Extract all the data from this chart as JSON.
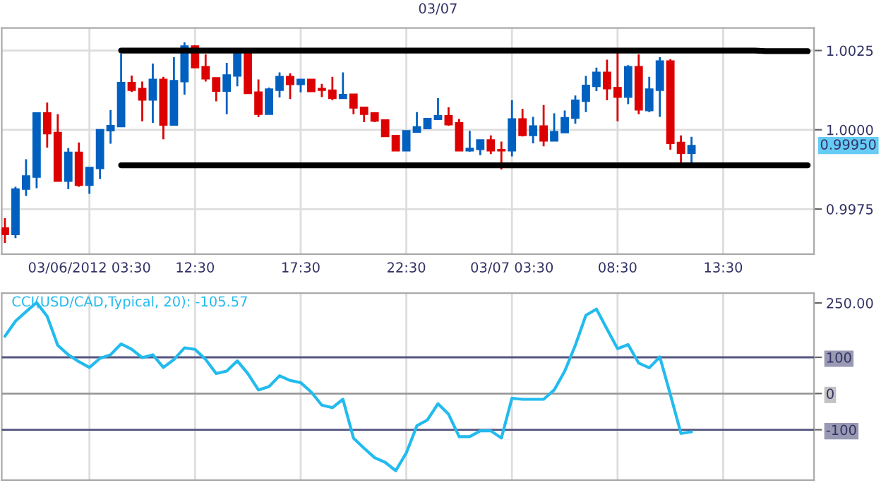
{
  "chart_data": [
    {
      "type": "candlestick",
      "categories": [
        null,
        null,
        null,
        null,
        null,
        null,
        null,
        null,
        "03/06/2012 03:30",
        null,
        null,
        null,
        null,
        null,
        null,
        null,
        null,
        null,
        "12:30",
        null,
        null,
        null,
        null,
        null,
        null,
        null,
        null,
        null,
        "17:30",
        null,
        null,
        null,
        null,
        null,
        null,
        null,
        null,
        null,
        "22:30",
        null,
        null,
        null,
        null,
        null,
        null,
        null,
        null,
        null,
        "03/07 03:30",
        null,
        null,
        null,
        null,
        null,
        null,
        null,
        null,
        null,
        "08:30",
        null,
        null,
        null,
        null,
        null,
        null,
        null,
        null,
        null,
        "13:30",
        null,
        null,
        null,
        null,
        null,
        null,
        null,
        null
      ],
      "ohlc": [
        [
          0.9969,
          0.99721,
          0.99643,
          0.9967
        ],
        [
          0.9967,
          0.9982,
          0.99658,
          0.99813
        ],
        [
          0.99813,
          0.99907,
          0.99791,
          0.99854
        ],
        [
          0.99851,
          1.00053,
          0.99816,
          1.00053
        ],
        [
          1.00053,
          1.00086,
          0.99944,
          0.99988
        ],
        [
          0.99991,
          1.00049,
          0.99838,
          0.99838
        ],
        [
          0.99838,
          0.99942,
          0.99813,
          0.99929
        ],
        [
          0.99929,
          0.9996,
          0.9982,
          0.99825
        ],
        [
          0.99825,
          0.99881,
          0.99798,
          0.99881
        ],
        [
          0.99878,
          1.0,
          0.99845,
          1.0
        ],
        [
          0.99997,
          1.00062,
          0.99956,
          1.00013
        ],
        [
          1.0001,
          1.0024,
          1.0001,
          1.00149
        ],
        [
          1.00149,
          1.00171,
          1.00119,
          1.00125
        ],
        [
          1.0013,
          1.00152,
          1.00027,
          1.00094
        ],
        [
          1.00094,
          1.00209,
          1.00022,
          1.00159
        ],
        [
          1.00159,
          1.00167,
          0.9997,
          1.00015
        ],
        [
          1.00015,
          1.00229,
          1.00015,
          1.00155
        ],
        [
          1.00152,
          1.00276,
          1.00111,
          1.00264
        ],
        [
          1.00264,
          1.00267,
          1.00196,
          1.00196
        ],
        [
          1.00199,
          1.00238,
          1.00152,
          1.00161
        ],
        [
          1.00164,
          1.00164,
          1.0009,
          1.00122
        ],
        [
          1.00122,
          1.00211,
          1.00049,
          1.00173
        ],
        [
          1.0017,
          1.0024,
          1.00137,
          1.0024
        ],
        [
          1.0024,
          1.0024,
          1.00115,
          1.00115
        ],
        [
          1.00119,
          1.00159,
          1.0004,
          1.00049
        ],
        [
          1.00049,
          1.00133,
          1.00049,
          1.00128
        ],
        [
          1.00125,
          1.00181,
          1.00102,
          1.00168
        ],
        [
          1.00168,
          1.00178,
          1.00097,
          1.00143
        ],
        [
          1.00143,
          1.00159,
          1.00118,
          1.00159
        ],
        [
          1.00159,
          1.00159,
          1.00121,
          1.00121
        ],
        [
          1.0013,
          1.00145,
          1.00103,
          1.00125
        ],
        [
          1.00125,
          1.00167,
          1.00093,
          1.00099
        ],
        [
          1.00099,
          1.00181,
          1.00099,
          1.00111
        ],
        [
          1.00112,
          1.00112,
          1.00049,
          1.00069
        ],
        [
          1.00071,
          1.00071,
          1.00024,
          1.00049
        ],
        [
          1.00053,
          1.00053,
          1.00024,
          1.00028
        ],
        [
          1.00031,
          1.00031,
          0.99979,
          0.99979
        ],
        [
          0.99982,
          0.99982,
          0.99934,
          0.99934
        ],
        [
          0.99934,
          0.99997,
          0.99934,
          0.99997
        ],
        [
          0.99993,
          1.00056,
          0.99993,
          1.00009
        ],
        [
          1.00004,
          1.00035,
          1.00004,
          1.00035
        ],
        [
          1.00033,
          1.001,
          1.00033,
          1.00044
        ],
        [
          1.00044,
          1.00071,
          1.00013,
          1.00016
        ],
        [
          1.00022,
          1.00034,
          0.99934,
          0.99934
        ],
        [
          0.99934,
          0.99997,
          0.99931,
          0.99941
        ],
        [
          0.99938,
          0.99968,
          0.9992,
          0.99968
        ],
        [
          0.99968,
          0.99982,
          0.99923,
          0.99934
        ],
        [
          0.99937,
          0.99963,
          0.99875,
          0.99934
        ],
        [
          0.99934,
          1.00093,
          0.99916,
          1.00034
        ],
        [
          1.00034,
          1.00066,
          0.99979,
          0.99982
        ],
        [
          0.99982,
          1.00041,
          0.99957,
          1.00012
        ],
        [
          1.00012,
          1.00078,
          0.99948,
          0.99965
        ],
        [
          0.99965,
          1.00052,
          0.99965,
          0.99994
        ],
        [
          0.99991,
          1.00061,
          0.99991,
          1.00038
        ],
        [
          1.00037,
          1.00108,
          1.00019,
          1.00093
        ],
        [
          1.0009,
          1.0017,
          1.00056,
          1.0014
        ],
        [
          1.00137,
          1.00196,
          1.00122,
          1.00181
        ],
        [
          1.00181,
          1.00221,
          1.00093,
          1.0013
        ],
        [
          1.00133,
          1.00243,
          1.00027,
          1.00103
        ],
        [
          1.00103,
          1.00204,
          1.00081,
          1.00199
        ],
        [
          1.00199,
          1.00238,
          1.00049,
          1.00063
        ],
        [
          1.00061,
          1.00167,
          1.00056,
          1.00128
        ],
        [
          1.00125,
          1.00229,
          1.00041,
          1.00217
        ],
        [
          1.00217,
          1.00223,
          0.99937,
          0.99957
        ],
        [
          0.9996,
          0.99982,
          0.99894,
          0.99926
        ],
        [
          0.99926,
          0.99978,
          0.99894,
          0.9995
        ],
        null,
        null,
        null,
        null,
        null,
        null,
        null,
        null,
        null,
        null,
        null
      ],
      "colors": [
        "#dd0000",
        "#0060c0",
        "#0060c0",
        "#0060c0",
        "#dd0000",
        "#dd0000",
        "#0060c0",
        "#dd0000",
        "#0060c0",
        "#0060c0",
        "#0060c0",
        "#0060c0",
        "#dd0000",
        "#dd0000",
        "#0060c0",
        "#dd0000",
        "#0060c0",
        "#0060c0",
        "#dd0000",
        "#dd0000",
        "#dd0000",
        "#0060c0",
        "#0060c0",
        "#dd0000",
        "#dd0000",
        "#0060c0",
        "#0060c0",
        "#dd0000",
        "#0060c0",
        "#dd0000",
        "#dd0000",
        "#dd0000",
        "#0060c0",
        "#dd0000",
        "#dd0000",
        "#dd0000",
        "#dd0000",
        "#dd0000",
        "#0060c0",
        "#0060c0",
        "#0060c0",
        "#0060c0",
        "#dd0000",
        "#dd0000",
        "#0060c0",
        "#0060c0",
        "#dd0000",
        "#dd0000",
        "#0060c0",
        "#dd0000",
        "#0060c0",
        "#dd0000",
        "#0060c0",
        "#0060c0",
        "#0060c0",
        "#0060c0",
        "#0060c0",
        "#dd0000",
        "#dd0000",
        "#0060c0",
        "#dd0000",
        "#0060c0",
        "#0060c0",
        "#dd0000",
        "#dd0000",
        "#0060c0",
        null,
        null,
        null,
        null,
        null,
        null,
        null,
        null,
        null,
        null,
        null
      ],
      "series": [
        {
          "type": "line",
          "color": "#000000",
          "values": [
            null,
            null,
            null,
            null,
            null,
            null,
            null,
            null,
            null,
            null,
            null,
            1.0025,
            1.0025,
            1.0025,
            1.0025,
            1.0025,
            1.0025,
            1.0025,
            1.0025,
            1.0025,
            1.0025,
            1.0025,
            1.0025,
            1.0025,
            1.0025,
            1.0025,
            1.0025,
            1.0025,
            1.0025,
            1.0025,
            1.0025,
            1.0025,
            1.0025,
            1.0025,
            1.0025,
            1.0025,
            1.0025,
            1.0025,
            1.0025,
            1.0025,
            1.0025,
            1.0025,
            1.0025,
            1.0025,
            1.0025,
            1.0025,
            1.0025,
            1.0025,
            1.0025,
            1.0025,
            1.0025,
            1.0025,
            1.0025,
            1.0025,
            1.0025,
            1.0025,
            1.0025,
            1.0025,
            1.0025,
            1.0025,
            1.0025,
            1.0025,
            1.0025,
            1.0025,
            1.0025,
            1.0025,
            1.0025,
            1.0025,
            1.0025,
            1.0025,
            1.0025,
            1.0025,
            1.00248,
            1.00248,
            1.00248,
            1.00248,
            1.00248
          ]
        },
        {
          "type": "line",
          "color": "#000000",
          "values": [
            null,
            null,
            null,
            null,
            null,
            null,
            null,
            null,
            null,
            null,
            null,
            0.99888,
            0.99888,
            0.99888,
            0.99888,
            0.99888,
            0.99888,
            0.99888,
            0.99888,
            0.99888,
            0.99888,
            0.99888,
            0.99888,
            0.99888,
            0.99888,
            0.99888,
            0.99888,
            0.99888,
            0.99888,
            0.99888,
            0.99888,
            0.99888,
            0.99888,
            0.99888,
            0.99888,
            0.99888,
            0.99888,
            0.99888,
            0.99888,
            0.99888,
            0.99888,
            0.99888,
            0.99888,
            0.99888,
            0.99888,
            0.99888,
            0.99888,
            0.99888,
            0.99888,
            0.99888,
            0.99888,
            0.99888,
            0.99888,
            0.99888,
            0.99888,
            0.99888,
            0.99888,
            0.99888,
            0.99888,
            0.99888,
            0.99888,
            0.99888,
            0.99888,
            0.99888,
            0.99888,
            0.99888,
            0.99888,
            0.99888,
            0.99888,
            0.99888,
            0.99888,
            0.99888,
            0.99888,
            0.99888,
            0.99888,
            0.99888,
            0.99888
          ]
        }
      ],
      "annotations": [
        "0.99950",
        "03/07"
      ],
      "ylim": [
        0.99608,
        1.00321
      ],
      "yticks": [
        0.9975,
        {
          "value": 1.0,
          "label": "1.0000"
        },
        1.0025
      ],
      "grid": true
    },
    {
      "type": "line",
      "categories": [
        null,
        null,
        null,
        null,
        null,
        null,
        null,
        null,
        null,
        null,
        null,
        null,
        null,
        null,
        null,
        null,
        null,
        null,
        null,
        null,
        null,
        null,
        null,
        null,
        null,
        null,
        null,
        null,
        null,
        null,
        null,
        null,
        null,
        null,
        null,
        null,
        null,
        null,
        null,
        null,
        null,
        null,
        null,
        null,
        null,
        null,
        null,
        null,
        null,
        null,
        null,
        null,
        null,
        null,
        null,
        null,
        null,
        null,
        null,
        null,
        null,
        null,
        null,
        null,
        null,
        null,
        null,
        null,
        null,
        null,
        null,
        null,
        null,
        null,
        null,
        null,
        null
      ],
      "series": [
        {
          "name": "CCI(USD/CAD,Typical, 20): -105.57",
          "color": "#22bbee",
          "values": [
            158,
            200,
            226,
            251,
            213,
            133,
            107,
            88,
            72,
            97,
            107,
            137,
            122,
            99,
            107,
            72,
            94,
            126,
            122,
            94,
            55,
            62,
            90,
            55,
            10,
            19,
            49,
            36,
            30,
            4,
            -32,
            -39,
            -16,
            -123,
            -151,
            -177,
            -190,
            -213,
            -164,
            -89,
            -73,
            -28,
            -57,
            -119,
            -119,
            -103,
            -103,
            -123,
            -13,
            -16,
            -16,
            -16,
            10,
            62,
            133,
            216,
            233,
            178,
            124,
            135,
            84,
            71,
            101,
            -3,
            -110,
            -105.57,
            null,
            null,
            null,
            null,
            null,
            null,
            null,
            null,
            null,
            null,
            null
          ]
        }
      ],
      "ref_lines": [
        {
          "axis": "y",
          "value": 100,
          "color": "#555580"
        },
        {
          "axis": "y",
          "value": 0,
          "color": "#999999"
        },
        {
          "axis": "y",
          "value": -100,
          "color": "#555580"
        }
      ],
      "ylim": [
        -239,
        277
      ],
      "yticks": [
        {
          "value": 250,
          "label": "250.00"
        },
        100,
        0,
        -100
      ],
      "tick_labels": "y",
      "grid": "x"
    }
  ]
}
